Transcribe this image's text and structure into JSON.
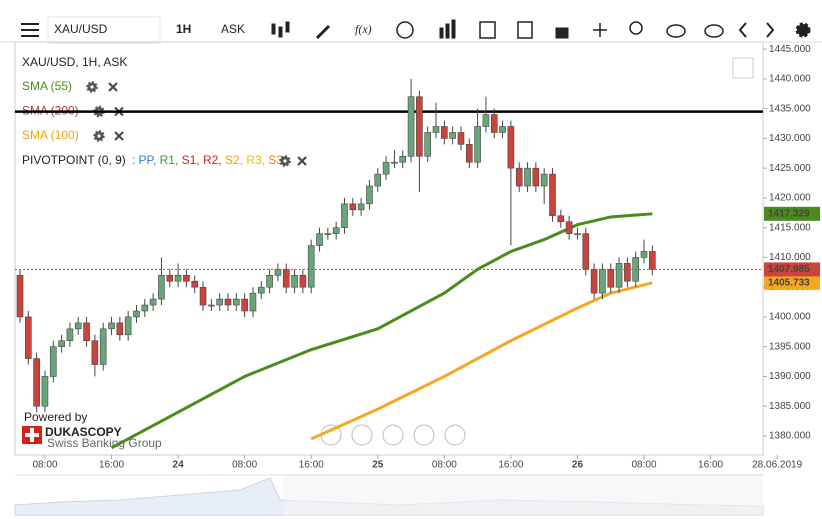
{
  "toolbar": {
    "symbol": "XAU/USD",
    "period": "1H",
    "side": "ASK"
  },
  "legend": {
    "header": "XAU/USD, 1H, ASK",
    "indicators": [
      {
        "label": "SMA (55)",
        "color": "#4a8c1c"
      },
      {
        "label": "SMA (200)",
        "color": "#b03a2e"
      },
      {
        "label": "SMA (100)",
        "color": "#f0a30a"
      }
    ],
    "pivot": {
      "label": "PIVOTPOINT (0, 9)",
      "items": [
        {
          "text": ": PP,",
          "color": "#2e7bcf"
        },
        {
          "text": " R1,",
          "color": "#3a9a3a"
        },
        {
          "text": " S1,",
          "color": "#d02020"
        },
        {
          "text": " R2,",
          "color": "#d02020"
        },
        {
          "text": " S2,",
          "color": "#f0a30a"
        },
        {
          "text": " R3,",
          "color": "#e8c000"
        },
        {
          "text": " S3",
          "color": "#f08000"
        }
      ]
    }
  },
  "branding": {
    "powered": "Powered by",
    "name": "DUKASCOPY",
    "tagline": "Swiss Banking Group"
  },
  "chart_data": {
    "type": "candlestick",
    "x": [
      5,
      6,
      7,
      8,
      9,
      10,
      11,
      12,
      13,
      14,
      15,
      16,
      17,
      18,
      19,
      20,
      21,
      22,
      23,
      24,
      25,
      26,
      27,
      28,
      29,
      30,
      31,
      32,
      33,
      34,
      35,
      36,
      37,
      38,
      39,
      40,
      41,
      42,
      43,
      44,
      45,
      46,
      47,
      48,
      49,
      50,
      51,
      52,
      53,
      54,
      55,
      56,
      57,
      58,
      59,
      60,
      61,
      62,
      63,
      64,
      65,
      66,
      67,
      68,
      69,
      70,
      71,
      72,
      73,
      74,
      75,
      76,
      77,
      78,
      79,
      80,
      81
    ],
    "open": [
      1407,
      1400,
      1393,
      1385,
      1390,
      1395,
      1396,
      1398,
      1399,
      1396,
      1392,
      1398,
      1399,
      1397,
      1400,
      1401,
      1402,
      1403,
      1407,
      1406,
      1407,
      1406,
      1405,
      1402,
      1402,
      1403,
      1402,
      1403,
      1401,
      1404,
      1405,
      1407,
      1408,
      1405,
      1407,
      1405,
      1412,
      1414,
      1414,
      1415,
      1419,
      1418,
      1419,
      1422,
      1424,
      1426,
      1426,
      1427,
      1437,
      1427,
      1431,
      1432,
      1430,
      1431,
      1429,
      1426,
      1432,
      1434,
      1431,
      1432,
      1425,
      1422,
      1425,
      1422,
      1424,
      1417,
      1416,
      1414,
      1414,
      1408,
      1404,
      1408,
      1405,
      1409,
      1406,
      1410,
      1411
    ],
    "high": [
      1408,
      1401,
      1394,
      1391,
      1396,
      1397,
      1399,
      1400,
      1400,
      1397,
      1399,
      1400,
      1400,
      1401,
      1402,
      1403,
      1404,
      1410,
      1408,
      1409,
      1408,
      1407,
      1406,
      1403,
      1404,
      1404,
      1404,
      1404,
      1405,
      1406,
      1408,
      1409,
      1409,
      1408,
      1408,
      1413,
      1415,
      1415,
      1416,
      1420,
      1420,
      1420,
      1423,
      1425,
      1427,
      1428,
      1428,
      1440,
      1438,
      1432,
      1436,
      1433,
      1432,
      1432,
      1430,
      1435,
      1437,
      1435,
      1433,
      1433,
      1426,
      1426,
      1426,
      1425,
      1425,
      1418,
      1417,
      1415,
      1415,
      1409,
      1409,
      1409,
      1410,
      1410,
      1411,
      1413,
      1412
    ],
    "low": [
      1399,
      1392,
      1384,
      1384,
      1389,
      1394,
      1395,
      1397,
      1395,
      1390,
      1391,
      1397,
      1396,
      1396,
      1399,
      1400,
      1401,
      1402,
      1405,
      1405,
      1405,
      1404,
      1401,
      1401,
      1401,
      1401,
      1401,
      1400,
      1400,
      1403,
      1404,
      1406,
      1404,
      1404,
      1404,
      1404,
      1411,
      1413,
      1413,
      1414,
      1417,
      1417,
      1418,
      1421,
      1423,
      1425,
      1425,
      1426,
      1421,
      1426,
      1430,
      1429,
      1429,
      1428,
      1425,
      1425,
      1431,
      1430,
      1430,
      1412,
      1421,
      1421,
      1421,
      1419,
      1416,
      1415,
      1413,
      1413,
      1407,
      1403,
      1403,
      1404,
      1404,
      1405,
      1405,
      1409,
      1407
    ],
    "close": [
      1400,
      1393,
      1385,
      1390,
      1395,
      1396,
      1398,
      1399,
      1396,
      1392,
      1398,
      1399,
      1397,
      1400,
      1401,
      1402,
      1403,
      1407,
      1406,
      1407,
      1406,
      1405,
      1402,
      1402,
      1403,
      1402,
      1403,
      1401,
      1404,
      1405,
      1407,
      1408,
      1405,
      1407,
      1405,
      1412,
      1414,
      1414,
      1415,
      1419,
      1418,
      1419,
      1422,
      1424,
      1426,
      1426,
      1427,
      1437,
      1427,
      1431,
      1432,
      1430,
      1431,
      1429,
      1426,
      1432,
      1434,
      1431,
      1432,
      1425,
      1422,
      1425,
      1422,
      1424,
      1417,
      1416,
      1414,
      1414,
      1408,
      1404,
      1408,
      1405,
      1409,
      1406,
      1410,
      1411,
      1407.985
    ],
    "up_color": "#6aa57a",
    "down_color": "#c9443a",
    "sma": [
      {
        "name": "SMA (55)",
        "color": "#4a8c1c",
        "x": [
          16,
          24,
          32,
          40,
          48,
          56,
          60,
          64,
          68,
          72,
          76,
          81
        ],
        "values": [
          1378,
          1384,
          1390,
          1394.5,
          1398,
          1404,
          1408,
          1411,
          1413,
          1415.5,
          1416.8,
          1417.329
        ]
      },
      {
        "name": "SMA (100)",
        "color": "#f5a623",
        "x": [
          40,
          48,
          56,
          64,
          72,
          76,
          81
        ],
        "values": [
          1379.5,
          1384.5,
          1390,
          1396,
          1401.5,
          1404,
          1405.733
        ]
      }
    ],
    "horizontal_line": 1434.5,
    "xlim": [
      4.4,
      94.3
    ],
    "ylim": [
      1376.8,
      1446.2
    ],
    "xticks": [
      {
        "value": 8,
        "label": "08:00"
      },
      {
        "value": 16,
        "label": "16:00"
      },
      24,
      {
        "value": 32,
        "label": "08:00"
      },
      {
        "value": 40,
        "label": "16:00"
      },
      {
        "value": 48,
        "label": "25"
      },
      {
        "value": 56,
        "label": "08:00"
      },
      {
        "value": 64,
        "label": "16:00"
      },
      {
        "value": 72,
        "label": "26"
      },
      {
        "value": 80,
        "label": "08:00"
      },
      {
        "value": 88,
        "label": "16:00"
      },
      {
        "value": 96,
        "label": "28.06.2019"
      }
    ],
    "yticks": [
      {
        "value": 1380,
        "label": "1380.000"
      },
      {
        "value": 1385,
        "label": "1385.000"
      },
      {
        "value": 1390,
        "label": "1390.000"
      },
      {
        "value": 1395,
        "label": "1395.000"
      },
      {
        "value": 1400,
        "label": "1400.000"
      },
      {
        "value": 1405,
        "label": "1405.000"
      },
      {
        "value": 1410,
        "label": "1410.000"
      },
      {
        "value": 1415,
        "label": "1415.000"
      },
      {
        "value": 1420,
        "label": "1420.000"
      },
      {
        "value": 1425,
        "label": "1425.000"
      },
      {
        "value": 1430,
        "label": "1430.000"
      },
      {
        "value": 1435,
        "label": "1435.000"
      },
      {
        "value": 1440,
        "label": "1440.000"
      },
      {
        "value": 1445,
        "label": "1445.000"
      }
    ]
  }
}
